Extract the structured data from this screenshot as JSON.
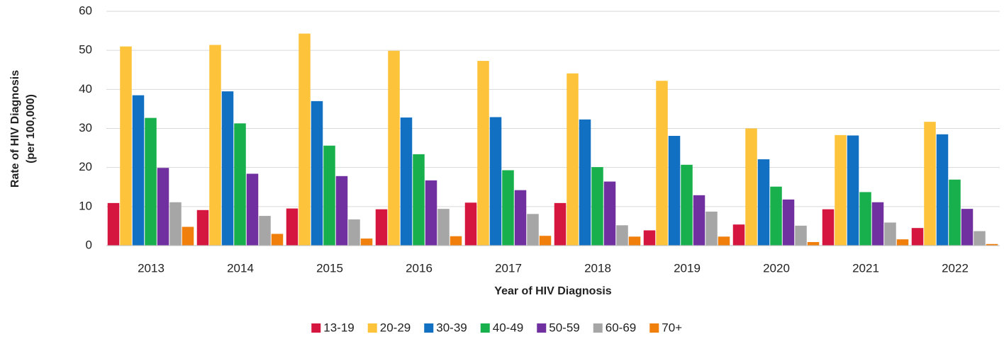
{
  "chart_data": {
    "type": "bar",
    "xlabel": "Year of HIV Diagnosis",
    "ylabel": [
      "Rate of HIV Diagnosis",
      "(per 100,000)"
    ],
    "categories": [
      "2013",
      "2014",
      "2015",
      "2016",
      "2017",
      "2018",
      "2019",
      "2020",
      "2021",
      "2022"
    ],
    "series": [
      {
        "name": "13-19",
        "color": "#d5173f",
        "values": [
          10.9,
          9.1,
          9.5,
          9.3,
          11,
          10.9,
          3.9,
          5.4,
          9.3,
          4.5
        ]
      },
      {
        "name": "20-29",
        "color": "#fdc33a",
        "values": [
          51,
          51.4,
          54.3,
          49.9,
          47.3,
          44.1,
          42.2,
          30,
          28.3,
          31.7
        ]
      },
      {
        "name": "30-39",
        "color": "#1170c1",
        "values": [
          38.5,
          39.5,
          37,
          32.8,
          32.9,
          32.3,
          28.1,
          22.1,
          28.2,
          28.5
        ]
      },
      {
        "name": "40-49",
        "color": "#18b04c",
        "values": [
          32.7,
          31.3,
          25.6,
          23.4,
          19.3,
          20.1,
          20.7,
          15.1,
          13.7,
          16.9
        ]
      },
      {
        "name": "50-59",
        "color": "#7030a0",
        "values": [
          19.9,
          18.4,
          17.8,
          16.7,
          14.2,
          16.4,
          12.9,
          11.8,
          11.1,
          9.4
        ]
      },
      {
        "name": "60-69",
        "color": "#a6a6a6",
        "values": [
          11.1,
          7.6,
          6.7,
          9.4,
          8.1,
          5.2,
          8.7,
          5.1,
          5.9,
          3.7
        ]
      },
      {
        "name": "70+",
        "color": "#f07f0b",
        "values": [
          4.8,
          3,
          1.8,
          2.4,
          2.5,
          2.3,
          2.3,
          0.9,
          1.6,
          0.4
        ]
      }
    ],
    "ylim": [
      0,
      60
    ],
    "yticks": [
      0,
      10,
      20,
      30,
      40,
      50,
      60
    ],
    "grid": true,
    "legend": "bottom"
  }
}
